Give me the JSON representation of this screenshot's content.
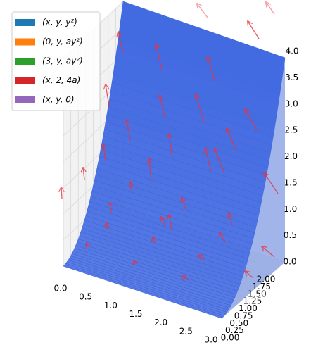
{
  "chart_data": {
    "type": "surface3d",
    "legend": [
      {
        "label": "(x, y, y²)",
        "color": "#1f77b4"
      },
      {
        "label": "(0, y, ay²)",
        "color": "#ff7f0e"
      },
      {
        "label": "(3, y, ay²)",
        "color": "#2ca02c"
      },
      {
        "label": "(x, 2, 4a)",
        "color": "#d62728"
      },
      {
        "label": "(x, y, 0)",
        "color": "#9467bd"
      }
    ],
    "xlim": [
      0,
      3
    ],
    "ylim": [
      0,
      2
    ],
    "zlim": [
      0,
      4
    ],
    "xticks": [
      {
        "value": 0,
        "label": "0.0"
      },
      {
        "value": 0.5,
        "label": "0.5"
      },
      {
        "value": 1,
        "label": "1.0"
      },
      {
        "value": 1.5,
        "label": "1.5"
      },
      {
        "value": 2,
        "label": "2.0"
      },
      {
        "value": 2.5,
        "label": "2.5"
      },
      {
        "value": 3,
        "label": "3.0"
      }
    ],
    "yticks": [
      {
        "value": 0,
        "label": "0.00"
      },
      {
        "value": 0.25,
        "label": "0.25"
      },
      {
        "value": 0.5,
        "label": "0.50"
      },
      {
        "value": 0.75,
        "label": "0.75"
      },
      {
        "value": 1,
        "label": "1.00"
      },
      {
        "value": 1.25,
        "label": "1.25"
      },
      {
        "value": 1.5,
        "label": "1.50"
      },
      {
        "value": 1.75,
        "label": "1.75"
      },
      {
        "value": 2,
        "label": "2.00"
      }
    ],
    "zticks": [
      {
        "value": 0,
        "label": "0.0"
      },
      {
        "value": 0.5,
        "label": "0.5"
      },
      {
        "value": 1,
        "label": "1.0"
      },
      {
        "value": 1.5,
        "label": "1.5"
      },
      {
        "value": 2,
        "label": "2.0"
      },
      {
        "value": 2.5,
        "label": "2.5"
      },
      {
        "value": 3,
        "label": "3.0"
      },
      {
        "value": 3.5,
        "label": "3.5"
      },
      {
        "value": 4,
        "label": "4.0"
      }
    ],
    "grid": true,
    "surface_color": "#4169e1",
    "legend_position": "upper left"
  }
}
